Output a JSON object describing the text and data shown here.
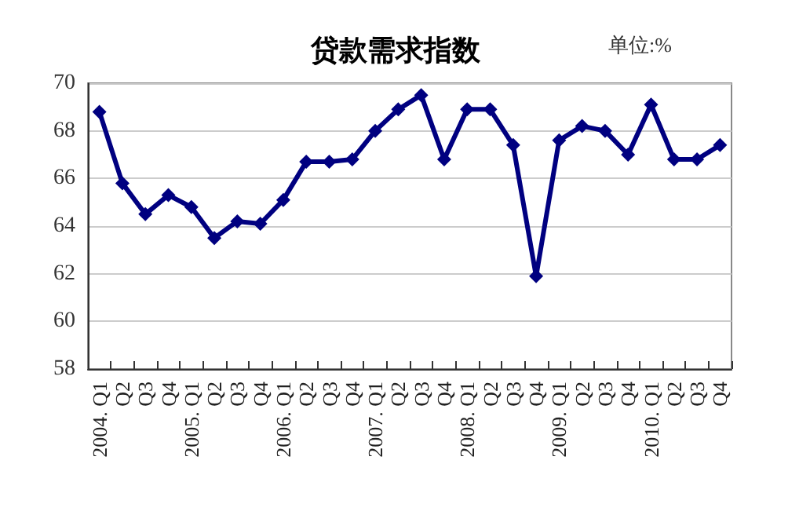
{
  "chart_data": {
    "type": "line",
    "title": "贷款需求指数",
    "annotations": [
      "单位:%"
    ],
    "categories": [
      "2004. Q1",
      "Q2",
      "Q3",
      "Q4",
      "2005. Q1",
      "Q2",
      "Q3",
      "Q4",
      "2006. Q1",
      "Q2",
      "Q3",
      "Q4",
      "2007. Q1",
      "Q2",
      "Q3",
      "Q4",
      "2008. Q1",
      "Q2",
      "Q3",
      "Q4",
      "2009. Q1",
      "Q2",
      "Q3",
      "Q4",
      "2010. Q1",
      "Q2",
      "Q3",
      "Q4"
    ],
    "series": [
      {
        "color": "#000080",
        "values": [
          68.8,
          65.8,
          64.5,
          65.3,
          64.8,
          63.5,
          64.2,
          64.1,
          65.1,
          66.7,
          66.7,
          66.8,
          68.0,
          68.9,
          69.5,
          66.8,
          68.9,
          68.9,
          67.4,
          61.9,
          67.6,
          68.2,
          68.0,
          67.0,
          69.1,
          66.8,
          66.8,
          67.4
        ]
      }
    ],
    "ylim": [
      58,
      70
    ],
    "yticks": [
      58,
      60,
      62,
      64,
      66,
      68,
      70
    ],
    "grid": "y",
    "marker": "diamond",
    "line_style": "solid"
  }
}
